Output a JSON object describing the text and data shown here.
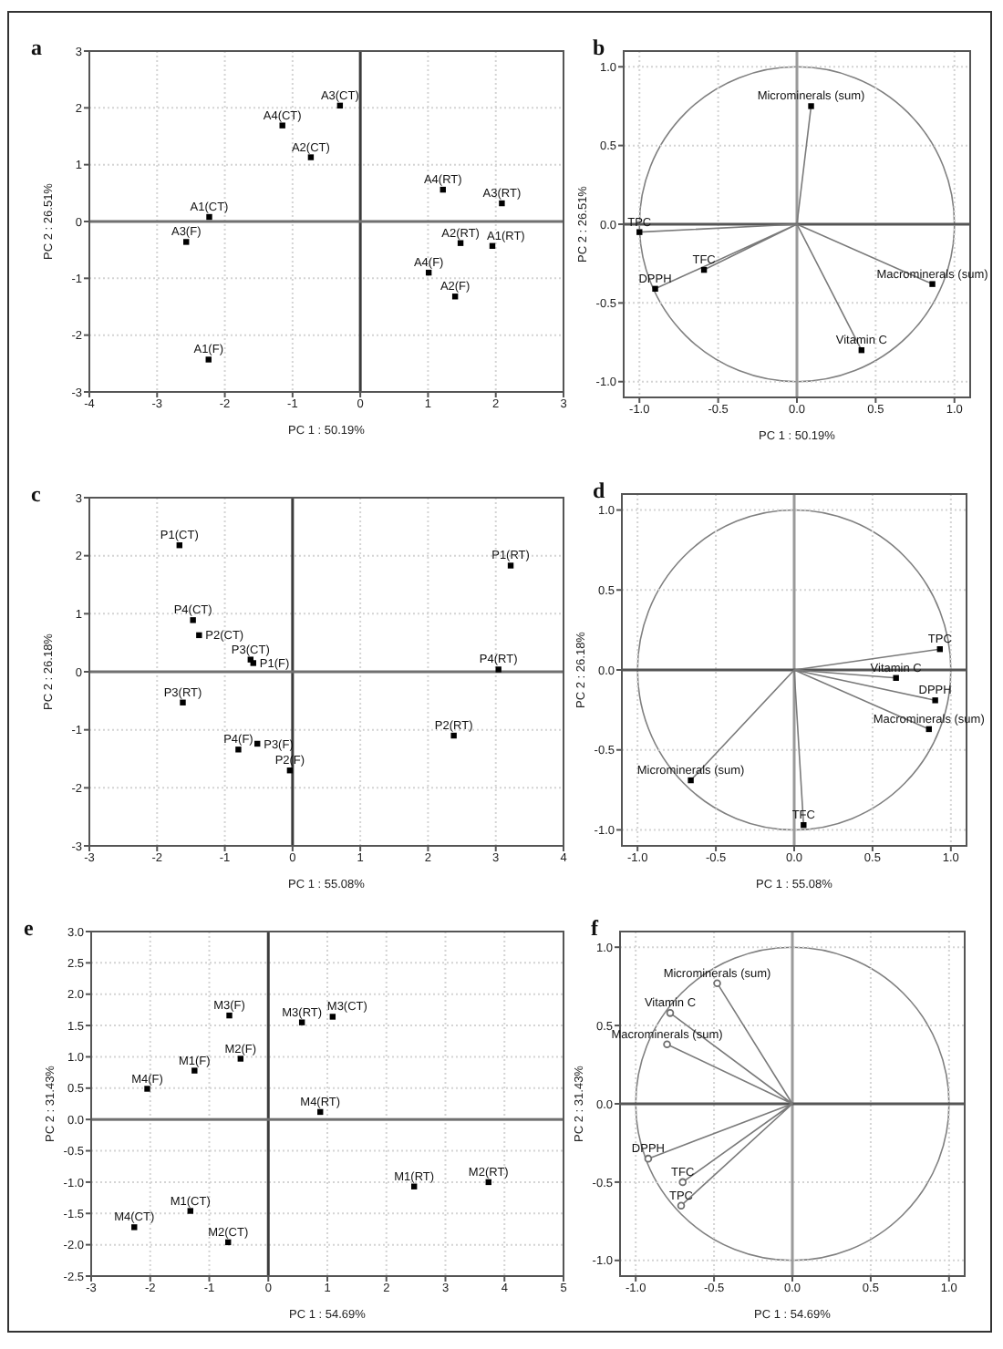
{
  "chart_data": [
    {
      "type": "scatter",
      "title": "a",
      "xlabel": "PC 1 : 50.19%",
      "ylabel": "PC 2 : 26.51%",
      "xlim": [
        -4,
        3
      ],
      "xticks": [
        -4,
        -3,
        -2,
        -1,
        0,
        1,
        2,
        3
      ],
      "ylim": [
        -3,
        3
      ],
      "yticks": [
        -3,
        -2,
        -1,
        0,
        1,
        2,
        3
      ],
      "grid": true,
      "marker": "square",
      "ref_lines": [
        {
          "axis": "x",
          "value": 0,
          "color": "#3c3c3c"
        },
        {
          "axis": "y",
          "value": 0,
          "color": "#707070"
        }
      ],
      "series": [
        {
          "color": "#000000",
          "x": [
            -0.3,
            -1.15,
            -0.73,
            -2.23,
            -2.57,
            -2.24,
            1.22,
            2.09,
            1.48,
            1.95,
            1.01,
            1.4
          ],
          "values": [
            2.04,
            1.69,
            1.13,
            0.08,
            -0.36,
            -2.43,
            0.56,
            0.32,
            -0.38,
            -0.43,
            -0.9,
            -1.32
          ]
        }
      ],
      "annotations": [
        {
          "text": "A3(CT)",
          "x": -0.3,
          "y": 2.04
        },
        {
          "text": "A4(CT)",
          "x": -1.15,
          "y": 1.69
        },
        {
          "text": "A2(CT)",
          "x": -0.73,
          "y": 1.13
        },
        {
          "text": "A1(CT)",
          "x": -2.23,
          "y": 0.08
        },
        {
          "text": "A3(F)",
          "x": -2.57,
          "y": -0.36
        },
        {
          "text": "A1(F)",
          "x": -2.24,
          "y": -2.43
        },
        {
          "text": "A4(RT)",
          "x": 1.22,
          "y": 0.56
        },
        {
          "text": "A3(RT)",
          "x": 2.09,
          "y": 0.32
        },
        {
          "text": "A2(RT)",
          "x": 1.48,
          "y": -0.38
        },
        {
          "text": "A1(RT)",
          "x": 1.95,
          "y": -0.43
        },
        {
          "text": "A4(F)",
          "x": 1.01,
          "y": -0.9
        },
        {
          "text": "A2(F)",
          "x": 1.4,
          "y": -1.32
        }
      ]
    },
    {
      "type": "scatter",
      "title": "b",
      "xlabel": "PC 1 : 50.19%",
      "ylabel": "PC 2 : 26.51%",
      "xlim": [
        -1.1,
        1.1
      ],
      "xticks": [
        {
          "value": -1,
          "label": "-1.0"
        },
        -0.5,
        {
          "value": 0,
          "label": "0.0"
        },
        0.5,
        {
          "value": 1,
          "label": "1.0"
        }
      ],
      "ylim": [
        -1.1,
        1.1
      ],
      "yticks": [
        {
          "value": -1,
          "label": "-1.0"
        },
        -0.5,
        {
          "value": 0,
          "label": "0.0"
        },
        0.5,
        {
          "value": 1,
          "label": "1.0"
        }
      ],
      "grid": true,
      "marker": "square",
      "ref_lines": [
        {
          "axis": "x",
          "value": 0,
          "color": "#9a9a9a"
        },
        {
          "axis": "y",
          "value": 0,
          "color": "#555555"
        }
      ],
      "series": [
        {
          "color": "#000000",
          "x": [
            0.09,
            -1.0,
            -0.59,
            -0.9,
            0.86,
            0.41
          ],
          "values": [
            0.75,
            -0.05,
            -0.29,
            -0.41,
            -0.38,
            -0.8
          ]
        },
        {
          "type": "line",
          "marker": "none",
          "color": "#7a7a7a",
          "x": [
            0,
            0.09,
            0,
            -1.0,
            0,
            -0.59,
            0,
            -0.9,
            0,
            0.86,
            0,
            0.41
          ],
          "values": [
            0,
            0.75,
            0,
            -0.05,
            0,
            -0.29,
            0,
            -0.41,
            0,
            -0.38,
            0,
            -0.8
          ]
        }
      ],
      "annotations": [
        {
          "text": "Microminerals (sum)",
          "x": 0.09,
          "y": 0.75
        },
        {
          "text": "TPC",
          "x": -1.0,
          "y": -0.05
        },
        {
          "text": "TFC",
          "x": -0.59,
          "y": -0.29
        },
        {
          "text": "DPPH",
          "x": -0.9,
          "y": -0.41
        },
        {
          "text": "Macrominerals (sum)",
          "x": 0.86,
          "y": -0.38
        },
        {
          "text": "Vitamin C",
          "x": 0.41,
          "y": -0.8
        }
      ]
    },
    {
      "type": "scatter",
      "title": "c",
      "xlabel": "PC 1 : 55.08%",
      "ylabel": "PC 2 : 26.18%",
      "xlim": [
        -3,
        4
      ],
      "xticks": [
        -3,
        -2,
        -1,
        0,
        1,
        2,
        3,
        4
      ],
      "ylim": [
        -3,
        3
      ],
      "yticks": [
        -3,
        -2,
        -1,
        0,
        1,
        2,
        3
      ],
      "grid": true,
      "marker": "square",
      "ref_lines": [
        {
          "axis": "x",
          "value": 0,
          "color": "#3c3c3c"
        },
        {
          "axis": "y",
          "value": 0,
          "color": "#707070"
        }
      ],
      "series": [
        {
          "color": "#000000",
          "x": [
            -1.67,
            -1.47,
            -1.38,
            -0.62,
            -0.58,
            -1.62,
            -0.8,
            -0.52,
            -0.04,
            2.38,
            3.04,
            3.22
          ],
          "values": [
            2.18,
            0.89,
            0.63,
            0.21,
            0.15,
            -0.53,
            -1.34,
            -1.24,
            -1.7,
            -1.1,
            0.04,
            1.83
          ]
        }
      ],
      "annotations": [
        {
          "text": "P1(CT)",
          "x": -1.67,
          "y": 2.18
        },
        {
          "text": "P4(CT)",
          "x": -1.47,
          "y": 0.89
        },
        {
          "text": "P2(CT)",
          "x": -1.38,
          "y": 0.63
        },
        {
          "text": "P3(CT)",
          "x": -0.62,
          "y": 0.21
        },
        {
          "text": "P1(F)",
          "x": -0.58,
          "y": 0.15
        },
        {
          "text": "P3(RT)",
          "x": -1.62,
          "y": -0.53
        },
        {
          "text": "P4(F)",
          "x": -0.8,
          "y": -1.34
        },
        {
          "text": "P3(F)",
          "x": -0.52,
          "y": -1.24
        },
        {
          "text": "P2(F)",
          "x": -0.04,
          "y": -1.7
        },
        {
          "text": "P2(RT)",
          "x": 2.38,
          "y": -1.1
        },
        {
          "text": "P4(RT)",
          "x": 3.04,
          "y": 0.04
        },
        {
          "text": "P1(RT)",
          "x": 3.22,
          "y": 1.83
        }
      ]
    },
    {
      "type": "scatter",
      "title": "d",
      "xlabel": "PC 1 : 55.08%",
      "ylabel": "PC 2 : 26.18%",
      "xlim": [
        -1.1,
        1.1
      ],
      "xticks": [
        {
          "value": -1,
          "label": "-1.0"
        },
        -0.5,
        {
          "value": 0,
          "label": "0.0"
        },
        0.5,
        {
          "value": 1,
          "label": "1.0"
        }
      ],
      "ylim": [
        -1.1,
        1.1
      ],
      "yticks": [
        {
          "value": -1,
          "label": "-1.0"
        },
        -0.5,
        {
          "value": 0,
          "label": "0.0"
        },
        0.5,
        {
          "value": 1,
          "label": "1.0"
        }
      ],
      "grid": true,
      "marker": "square",
      "ref_lines": [
        {
          "axis": "x",
          "value": 0,
          "color": "#9a9a9a"
        },
        {
          "axis": "y",
          "value": 0,
          "color": "#555555"
        }
      ],
      "series": [
        {
          "color": "#000000",
          "x": [
            0.93,
            0.65,
            0.9,
            0.86,
            -0.66,
            0.06
          ],
          "values": [
            0.13,
            -0.05,
            -0.19,
            -0.37,
            -0.69,
            -0.97
          ]
        },
        {
          "type": "line",
          "marker": "none",
          "color": "#7a7a7a",
          "x": [
            0,
            0.93,
            0,
            0.65,
            0,
            0.9,
            0,
            0.86,
            0,
            -0.66,
            0,
            0.06
          ],
          "values": [
            0,
            0.13,
            0,
            -0.05,
            0,
            -0.19,
            0,
            -0.37,
            0,
            -0.69,
            0,
            -0.97
          ]
        }
      ],
      "annotations": [
        {
          "text": "TPC",
          "x": 0.93,
          "y": 0.13
        },
        {
          "text": "Vitamin C",
          "x": 0.65,
          "y": -0.05
        },
        {
          "text": "DPPH",
          "x": 0.9,
          "y": -0.19
        },
        {
          "text": "Macrominerals (sum)",
          "x": 0.86,
          "y": -0.37
        },
        {
          "text": "Microminerals (sum)",
          "x": -0.66,
          "y": -0.69
        },
        {
          "text": "TFC",
          "x": 0.06,
          "y": -0.97
        }
      ]
    },
    {
      "type": "scatter",
      "title": "e",
      "xlabel": "PC 1 : 54.69%",
      "ylabel": "PC 2 : 31.43%",
      "xlim": [
        -3,
        5
      ],
      "xticks": [
        -3,
        -2,
        -1,
        0,
        1,
        2,
        3,
        4,
        5
      ],
      "ylim": [
        -2.5,
        3
      ],
      "yticks": [
        -2.5,
        {
          "value": -2,
          "label": "-2.0"
        },
        -1.5,
        {
          "value": -1,
          "label": "-1.0"
        },
        -0.5,
        {
          "value": 0,
          "label": "0.0"
        },
        0.5,
        {
          "value": 1,
          "label": "1.0"
        },
        1.5,
        {
          "value": 2,
          "label": "2.0"
        },
        2.5,
        {
          "value": 3,
          "label": "3.0"
        }
      ],
      "grid": true,
      "marker": "square",
      "ref_lines": [
        {
          "axis": "x",
          "value": 0,
          "color": "#3c3c3c"
        },
        {
          "axis": "y",
          "value": 0,
          "color": "#707070"
        }
      ],
      "series": [
        {
          "color": "#000000",
          "x": [
            -0.66,
            0.57,
            1.09,
            -0.47,
            -1.25,
            -2.05,
            0.88,
            2.47,
            3.73,
            -1.32,
            -2.27,
            -0.68
          ],
          "values": [
            1.66,
            1.55,
            1.64,
            0.97,
            0.78,
            0.49,
            0.12,
            -1.07,
            -1.0,
            -1.46,
            -1.72,
            -1.96
          ]
        }
      ],
      "annotations": [
        {
          "text": "M3(F)",
          "x": -0.66,
          "y": 1.66
        },
        {
          "text": "M3(RT)",
          "x": 0.57,
          "y": 1.55
        },
        {
          "text": "M3(CT)",
          "x": 1.09,
          "y": 1.64
        },
        {
          "text": "M2(F)",
          "x": -0.47,
          "y": 0.97
        },
        {
          "text": "M1(F)",
          "x": -1.25,
          "y": 0.78
        },
        {
          "text": "M4(F)",
          "x": -2.05,
          "y": 0.49
        },
        {
          "text": "M4(RT)",
          "x": 0.88,
          "y": 0.12
        },
        {
          "text": "M1(RT)",
          "x": 2.47,
          "y": -1.07
        },
        {
          "text": "M2(RT)",
          "x": 3.73,
          "y": -1.0
        },
        {
          "text": "M1(CT)",
          "x": -1.32,
          "y": -1.46
        },
        {
          "text": "M4(CT)",
          "x": -2.27,
          "y": -1.72
        },
        {
          "text": "M2(CT)",
          "x": -0.68,
          "y": -1.96
        }
      ]
    },
    {
      "type": "scatter",
      "title": "f",
      "xlabel": "PC 1 : 54.69%",
      "ylabel": "PC 2 : 31.43%",
      "xlim": [
        -1.1,
        1.1
      ],
      "xticks": [
        {
          "value": -1,
          "label": "-1.0"
        },
        -0.5,
        {
          "value": 0,
          "label": "0.0"
        },
        0.5,
        {
          "value": 1,
          "label": "1.0"
        }
      ],
      "ylim": [
        -1.1,
        1.1
      ],
      "yticks": [
        {
          "value": -1,
          "label": "-1.0"
        },
        -0.5,
        {
          "value": 0,
          "label": "0.0"
        },
        0.5,
        {
          "value": 1,
          "label": "1.0"
        }
      ],
      "grid": true,
      "marker": "circle",
      "ref_lines": [
        {
          "axis": "x",
          "value": 0,
          "color": "#9a9a9a"
        },
        {
          "axis": "y",
          "value": 0,
          "color": "#555555"
        }
      ],
      "series": [
        {
          "color": "#6e6e6e",
          "x": [
            -0.48,
            -0.78,
            -0.8,
            -0.92,
            -0.7,
            -0.71
          ],
          "values": [
            0.77,
            0.58,
            0.38,
            -0.35,
            -0.5,
            -0.65
          ]
        },
        {
          "type": "line",
          "marker": "none",
          "color": "#7a7a7a",
          "x": [
            0,
            -0.48,
            0,
            -0.78,
            0,
            -0.8,
            0,
            -0.92,
            0,
            -0.7,
            0,
            -0.71
          ],
          "values": [
            0,
            0.77,
            0,
            0.58,
            0,
            0.38,
            0,
            -0.35,
            0,
            -0.5,
            0,
            -0.65
          ]
        }
      ],
      "annotations": [
        {
          "text": "Microminerals (sum)",
          "x": -0.48,
          "y": 0.77
        },
        {
          "text": "Vitamin C",
          "x": -0.78,
          "y": 0.58
        },
        {
          "text": "Macrominerals (sum)",
          "x": -0.8,
          "y": 0.38
        },
        {
          "text": "DPPH",
          "x": -0.92,
          "y": -0.35
        },
        {
          "text": "TFC",
          "x": -0.7,
          "y": -0.5
        },
        {
          "text": "TPC",
          "x": -0.71,
          "y": -0.65
        }
      ]
    }
  ]
}
